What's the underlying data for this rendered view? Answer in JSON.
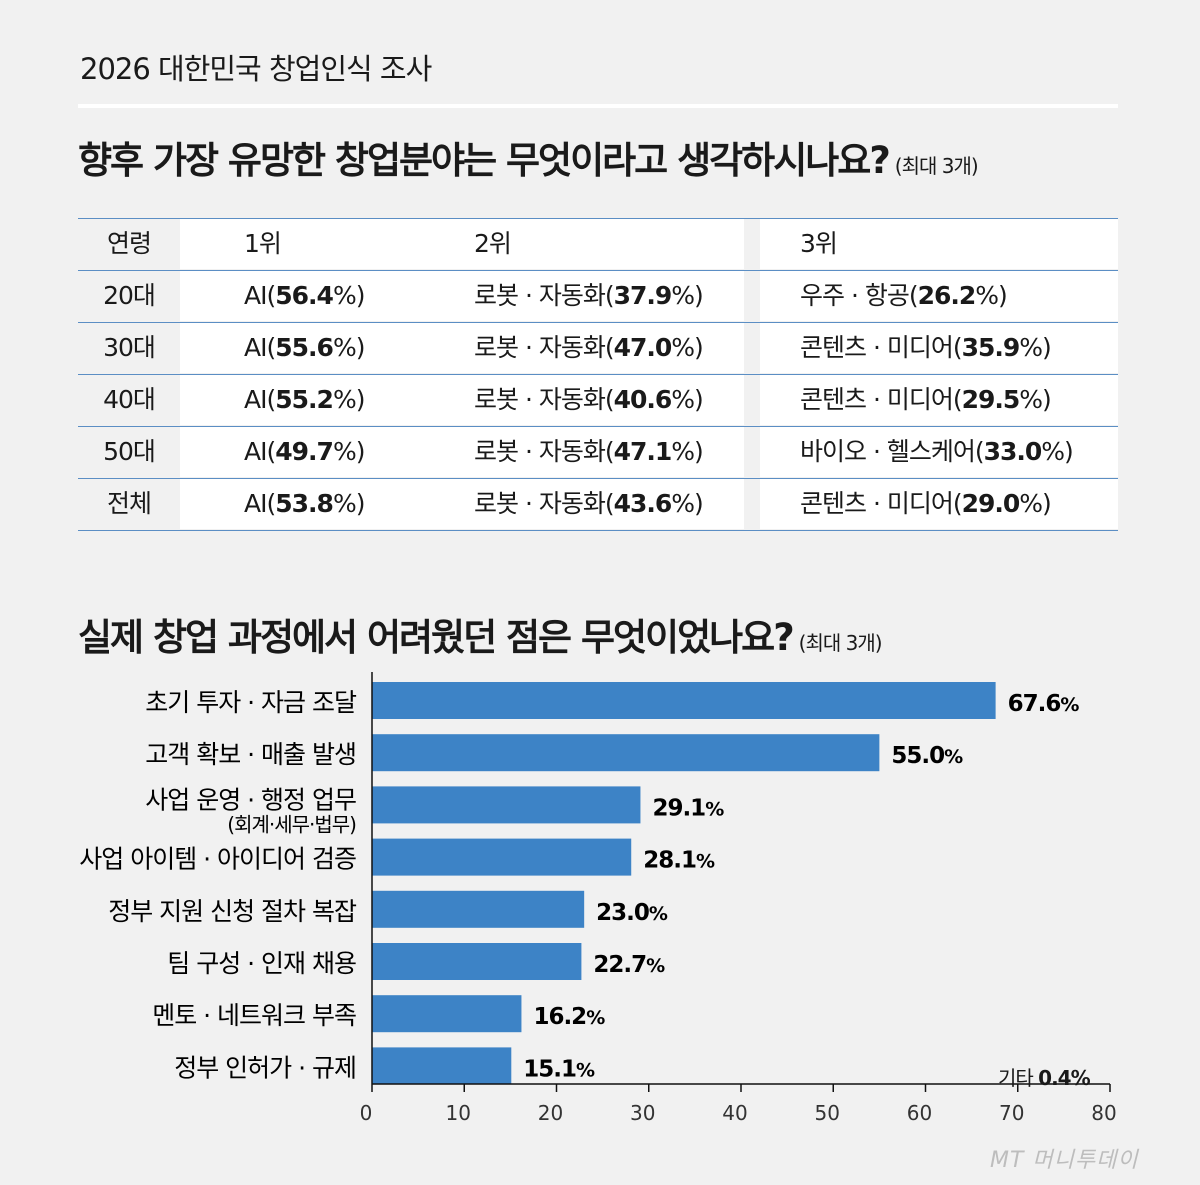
{
  "survey_title": "2026 대한민국 창업인식 조사",
  "q1": {
    "text": "향후 가장 유망한 창업분야는 무엇이라고 생각하시나요?",
    "note": "(최대 3개)"
  },
  "table": {
    "headers": [
      "연령",
      "1위",
      "2위",
      "3위"
    ],
    "rows": [
      {
        "age": "20대",
        "r1": {
          "name": "AI",
          "pct": "56.4"
        },
        "r2": {
          "name": "로봇 · 자동화",
          "pct": "37.9"
        },
        "r3": {
          "name": "우주 · 항공",
          "pct": "26.2"
        }
      },
      {
        "age": "30대",
        "r1": {
          "name": "AI",
          "pct": "55.6"
        },
        "r2": {
          "name": "로봇 · 자동화",
          "pct": "47.0"
        },
        "r3": {
          "name": "콘텐츠 · 미디어",
          "pct": "35.9"
        }
      },
      {
        "age": "40대",
        "r1": {
          "name": "AI",
          "pct": "55.2"
        },
        "r2": {
          "name": "로봇 · 자동화",
          "pct": "40.6"
        },
        "r3": {
          "name": "콘텐츠 · 미디어",
          "pct": "29.5"
        }
      },
      {
        "age": "50대",
        "r1": {
          "name": "AI",
          "pct": "49.7"
        },
        "r2": {
          "name": "로봇 · 자동화",
          "pct": "47.1"
        },
        "r3": {
          "name": "바이오 · 헬스케어",
          "pct": "33.0"
        }
      },
      {
        "age": "전체",
        "r1": {
          "name": "AI",
          "pct": "53.8"
        },
        "r2": {
          "name": "로봇 · 자동화",
          "pct": "43.6"
        },
        "r3": {
          "name": "콘텐츠 · 미디어",
          "pct": "29.0"
        }
      }
    ]
  },
  "q2": {
    "text": "실제 창업 과정에서 어려웠던 점은 무엇이었나요?",
    "note": "(최대 3개)"
  },
  "chart_data": {
    "type": "bar",
    "orientation": "horizontal",
    "categories": [
      "초기 투자 · 자금 조달",
      "고객 확보 · 매출 발생",
      "사업 운영 · 행정 업무",
      "사업 아이템 · 아이디어 검증",
      "정부 지원 신청 절차 복잡",
      "팀 구성 · 인재 채용",
      "멘토 · 네트워크 부족",
      "정부 인허가 · 규제"
    ],
    "sub_labels": [
      "",
      "",
      "(회계·세무·법무)",
      "",
      "",
      "",
      "",
      ""
    ],
    "values": [
      67.6,
      55.0,
      29.1,
      28.1,
      23.0,
      22.7,
      16.2,
      15.1
    ],
    "value_labels": [
      "67.6",
      "55.0",
      "29.1",
      "28.1",
      "23.0",
      "22.7",
      "16.2",
      "15.1"
    ],
    "unit": "%",
    "xlim": [
      0,
      80
    ],
    "xticks": [
      0,
      10,
      20,
      30,
      40,
      50,
      60,
      70,
      80
    ],
    "bar_color": "#3d83c6",
    "annotation": {
      "label": "기타",
      "value": "0.4%"
    }
  },
  "watermark": "MT 머니투데이"
}
